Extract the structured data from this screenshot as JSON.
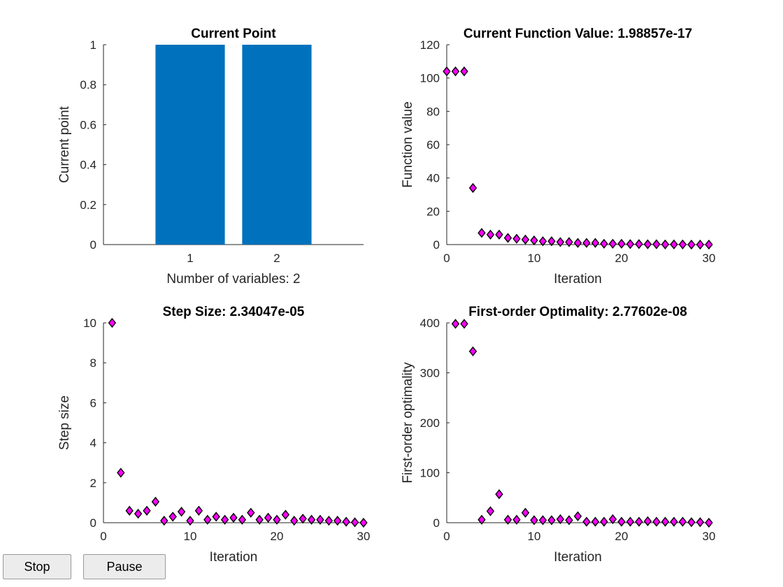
{
  "controls": {
    "stop_label": "Stop",
    "pause_label": "Pause"
  },
  "chart_data": [
    {
      "type": "bar",
      "title": "Current Point",
      "xlabel": "Number of variables: 2",
      "ylabel": "Current point",
      "categories": [
        "1",
        "2"
      ],
      "values": [
        1,
        1
      ],
      "ylim": [
        0,
        1
      ],
      "xlim": [
        0,
        3
      ],
      "yticks": [
        0,
        0.2,
        0.4,
        0.6,
        0.8,
        1
      ],
      "ytick_labels": [
        "0",
        "0.2",
        "0.4",
        "0.6",
        "0.8",
        "1"
      ],
      "color": "#0072BD",
      "grid": false
    },
    {
      "type": "scatter",
      "title": "Current Function Value: 1.98857e-17",
      "xlabel": "Iteration",
      "ylabel": "Function value",
      "x": [
        0,
        1,
        2,
        3,
        4,
        5,
        6,
        7,
        8,
        9,
        10,
        11,
        12,
        13,
        14,
        15,
        16,
        17,
        18,
        19,
        20,
        21,
        22,
        23,
        24,
        25,
        26,
        27,
        28,
        29,
        30
      ],
      "y": [
        104,
        104,
        104,
        34,
        7,
        6,
        6,
        4,
        3.5,
        3,
        2.5,
        2,
        2,
        1.5,
        1.5,
        1,
        1,
        1,
        0.5,
        0.5,
        0.5,
        0.3,
        0.3,
        0.2,
        0.2,
        0.1,
        0.1,
        0.1,
        0,
        0,
        0
      ],
      "xlim": [
        0,
        30
      ],
      "ylim": [
        0,
        120
      ],
      "xticks": [
        0,
        10,
        20,
        30
      ],
      "xtick_labels": [
        "0",
        "10",
        "20",
        "30"
      ],
      "yticks": [
        0,
        20,
        40,
        60,
        80,
        100,
        120
      ],
      "ytick_labels": [
        "0",
        "20",
        "40",
        "60",
        "80",
        "100",
        "120"
      ],
      "marker": "diamond",
      "color": "#FF00FF",
      "grid": false
    },
    {
      "type": "scatter",
      "title": "Step Size: 2.34047e-05",
      "xlabel": "Iteration",
      "ylabel": "Step size",
      "x": [
        1,
        2,
        3,
        4,
        5,
        6,
        7,
        8,
        9,
        10,
        11,
        12,
        13,
        14,
        15,
        16,
        17,
        18,
        19,
        20,
        21,
        22,
        23,
        24,
        25,
        26,
        27,
        28,
        29,
        30
      ],
      "y": [
        10,
        2.5,
        0.6,
        0.45,
        0.6,
        1.05,
        0.1,
        0.3,
        0.55,
        0.1,
        0.6,
        0.15,
        0.3,
        0.15,
        0.25,
        0.15,
        0.5,
        0.15,
        0.25,
        0.15,
        0.4,
        0.1,
        0.2,
        0.15,
        0.15,
        0.1,
        0.1,
        0.05,
        0.02,
        0
      ],
      "xlim": [
        0,
        30
      ],
      "ylim": [
        0,
        10
      ],
      "xticks": [
        0,
        10,
        20,
        30
      ],
      "xtick_labels": [
        "0",
        "10",
        "20",
        "30"
      ],
      "yticks": [
        0,
        2,
        4,
        6,
        8,
        10
      ],
      "ytick_labels": [
        "0",
        "2",
        "4",
        "6",
        "8",
        "10"
      ],
      "marker": "diamond",
      "color": "#FF00FF",
      "grid": false
    },
    {
      "type": "scatter",
      "title": "First-order Optimality: 2.77602e-08",
      "xlabel": "Iteration",
      "ylabel": "First-order optimality",
      "x": [
        0,
        1,
        2,
        3,
        4,
        5,
        6,
        7,
        8,
        9,
        10,
        11,
        12,
        13,
        14,
        15,
        16,
        17,
        18,
        19,
        20,
        21,
        22,
        23,
        24,
        25,
        26,
        27,
        28,
        29,
        30
      ],
      "y": [
        null,
        398,
        398,
        343,
        6,
        23,
        57,
        6,
        6,
        20,
        5,
        5,
        5,
        7,
        5,
        13,
        2,
        2,
        2,
        7,
        2,
        2,
        2,
        3,
        2,
        2,
        2,
        2,
        1,
        1,
        0
      ],
      "xlim": [
        0,
        30
      ],
      "ylim": [
        0,
        400
      ],
      "xticks": [
        0,
        10,
        20,
        30
      ],
      "xtick_labels": [
        "0",
        "10",
        "20",
        "30"
      ],
      "yticks": [
        0,
        100,
        200,
        300,
        400
      ],
      "ytick_labels": [
        "0",
        "100",
        "200",
        "300",
        "400"
      ],
      "marker": "diamond",
      "color": "#FF00FF",
      "grid": false
    }
  ]
}
